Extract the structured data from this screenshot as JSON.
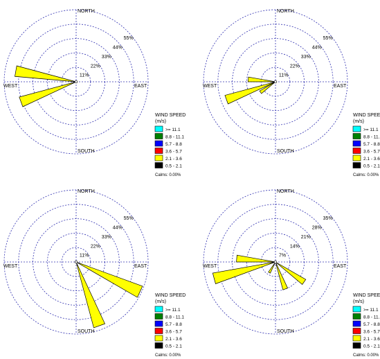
{
  "chart_data": [
    {
      "type": "windrose",
      "directions": {
        "north": "NORTH",
        "south": "SOUTH",
        "east": "EAST",
        "west": "WEST"
      },
      "ring_labels": [
        "11%",
        "22%",
        "33%",
        "44%",
        "55%"
      ],
      "petals": [
        {
          "bearing": 280,
          "frequency": 47,
          "bin": "2.1 - 3.6"
        },
        {
          "bearing": 250,
          "frequency": 45,
          "bin": "2.1 - 3.6"
        }
      ],
      "legend": {
        "title": [
          "WIND SPEED",
          "(m/s)"
        ],
        "bins": [
          {
            "label": ">= 11.1",
            "color": "#00ffff"
          },
          {
            "label": "8.8 - 11.1",
            "color": "#008000"
          },
          {
            "label": "5.7 - 8.8",
            "color": "#0000ff"
          },
          {
            "label": "3.6 - 5.7",
            "color": "#ff0000"
          },
          {
            "label": "2.1 - 3.6",
            "color": "#ffff00"
          },
          {
            "label": "0.5 - 2.1",
            "color": "#000000"
          }
        ],
        "calms": "Calms: 0.00%"
      }
    },
    {
      "type": "windrose",
      "directions": {
        "north": "NORTH",
        "south": "SOUTH",
        "east": "EAST",
        "west": "WEST"
      },
      "ring_labels": [
        "11%",
        "22%",
        "33%",
        "44%",
        "55%"
      ],
      "petals": [
        {
          "bearing": 275,
          "frequency": 21,
          "bin": "2.1 - 3.6"
        },
        {
          "bearing": 250,
          "frequency": 40,
          "bin": "2.1 - 3.6"
        },
        {
          "bearing": 235,
          "frequency": 14,
          "bin": "2.1 - 3.6"
        }
      ],
      "legend": {
        "title": [
          "WIND SPEED",
          "(m/s)"
        ],
        "bins": [
          {
            "label": ">= 11.1",
            "color": "#00ffff"
          },
          {
            "label": "8.8 - 11.1",
            "color": "#008000"
          },
          {
            "label": "5.7 - 8.8",
            "color": "#0000ff"
          },
          {
            "label": "3.6 - 5.7",
            "color": "#ff0000"
          },
          {
            "label": "2.1 - 3.6",
            "color": "#ffff00"
          },
          {
            "label": "0.5 - 2.1",
            "color": "#000000"
          }
        ],
        "calms": "Calms: 0.00%"
      }
    },
    {
      "type": "windrose",
      "directions": {
        "north": "NORTH",
        "south": "SOUTH",
        "east": "EAST",
        "west": "WEST"
      },
      "ring_labels": [
        "11%",
        "22%",
        "33%",
        "44%",
        "55%"
      ],
      "petals": [
        {
          "bearing": 115,
          "frequency": 54,
          "bin": "2.1 - 3.6"
        },
        {
          "bearing": 160,
          "frequency": 52,
          "bin": "2.1 - 3.6"
        }
      ],
      "legend": {
        "title": [
          "WIND SPEED",
          "(m/s)"
        ],
        "bins": [
          {
            "label": ">= 11.1",
            "color": "#00ffff"
          },
          {
            "label": "8.8 - 11.1",
            "color": "#008000"
          },
          {
            "label": "5.7 - 8.8",
            "color": "#0000ff"
          },
          {
            "label": "3.6 - 5.7",
            "color": "#ff0000"
          },
          {
            "label": "2.1 - 3.6",
            "color": "#ffff00"
          },
          {
            "label": "0.5 - 2.1",
            "color": "#000000"
          }
        ],
        "calms": "Calms: 0.00%"
      }
    },
    {
      "type": "windrose",
      "directions": {
        "north": "NORTH",
        "south": "SOUTH",
        "east": "EAST",
        "west": "WEST"
      },
      "ring_labels": [
        "7%",
        "14%",
        "21%",
        "28%",
        "35%"
      ],
      "petals": [
        {
          "bearing": 275,
          "frequency": 19,
          "bin": "2.1 - 3.6"
        },
        {
          "bearing": 255,
          "frequency": 31,
          "bin": "2.1 - 3.6"
        },
        {
          "bearing": 210,
          "frequency": 6,
          "bin": "2.1 - 3.6"
        },
        {
          "bearing": 160,
          "frequency": 14,
          "bin": "2.1 - 3.6"
        },
        {
          "bearing": 125,
          "frequency": 17,
          "bin": "2.1 - 3.6"
        }
      ],
      "legend": {
        "title": [
          "WIND SPEED",
          "(m/s)"
        ],
        "bins": [
          {
            "label": ">= 11.1",
            "color": "#00ffff"
          },
          {
            "label": "8.8 - 11.1",
            "color": "#008000"
          },
          {
            "label": "5.7 - 8.8",
            "color": "#0000ff"
          },
          {
            "label": "3.6 - 5.7",
            "color": "#ff0000"
          },
          {
            "label": "2.1 - 3.6",
            "color": "#ffff00"
          },
          {
            "label": "0.5 - 2.1",
            "color": "#000000"
          }
        ],
        "calms": "Calms: 0.00%"
      }
    }
  ],
  "style": {
    "grid_color": "#3030b0",
    "petal_outline": "#000000",
    "text_color": "#000000"
  }
}
